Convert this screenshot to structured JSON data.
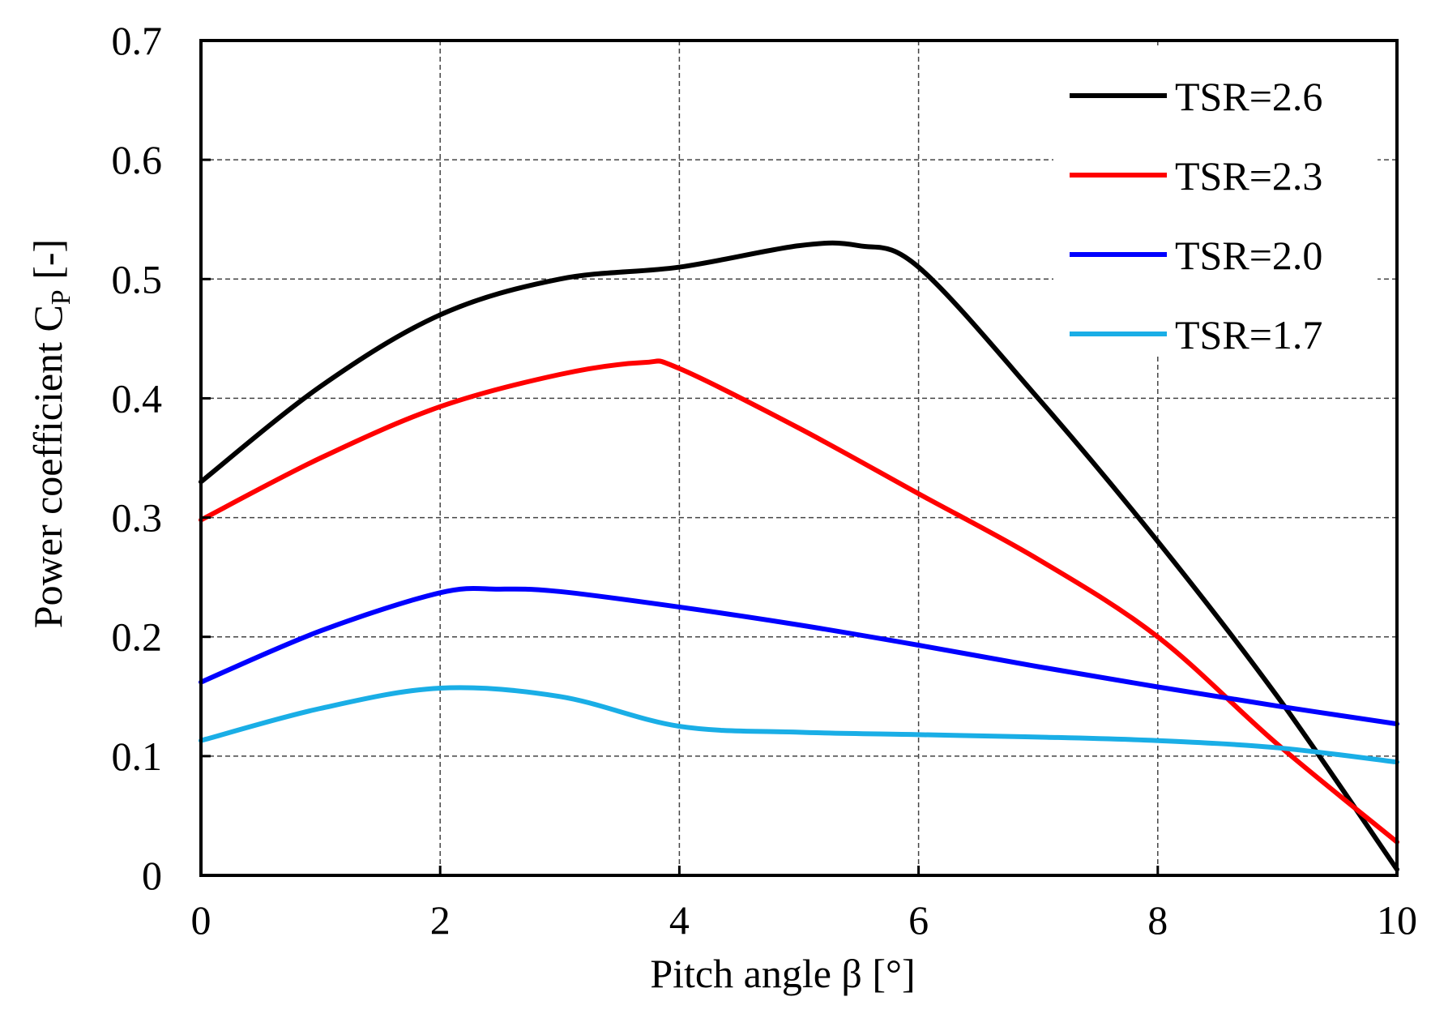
{
  "chart_data": {
    "type": "line",
    "title": "",
    "xlabel": "Pitch angle β [°]",
    "ylabel": "Power coefficient C",
    "ylabel_sub": "P",
    "ylabel_suffix": " [-]",
    "xlim": [
      0,
      10
    ],
    "ylim": [
      0,
      0.7
    ],
    "xticks": [
      0,
      2,
      4,
      6,
      8,
      10
    ],
    "xtick_labels": [
      "0",
      "2",
      "4",
      "6",
      "8",
      "10"
    ],
    "yticks": [
      0,
      0.1,
      0.2,
      0.3,
      0.4,
      0.5,
      0.6,
      0.7
    ],
    "ytick_labels": [
      "0",
      "0.1",
      "0.2",
      "0.3",
      "0.4",
      "0.5",
      "0.6",
      "0.7"
    ],
    "grid": true,
    "legend_position": "top-right",
    "series": [
      {
        "name": "TSR=2.6",
        "color": "#000000",
        "x": [
          0,
          1,
          2,
          3,
          4,
          5,
          5.5,
          6,
          7,
          8,
          9,
          10
        ],
        "y": [
          0.33,
          0.41,
          0.47,
          0.5,
          0.51,
          0.528,
          0.528,
          0.51,
          0.4,
          0.28,
          0.15,
          0.005
        ]
      },
      {
        "name": "TSR=2.3",
        "color": "#ff0000",
        "x": [
          0,
          1,
          2,
          3,
          3.7,
          4,
          5,
          6,
          7,
          8,
          9,
          10
        ],
        "y": [
          0.298,
          0.35,
          0.393,
          0.42,
          0.43,
          0.425,
          0.375,
          0.32,
          0.265,
          0.2,
          0.11,
          0.028
        ]
      },
      {
        "name": "TSR=2.0",
        "color": "#0000ff",
        "x": [
          0,
          1,
          2,
          2.5,
          3,
          4,
          5,
          6,
          7,
          8,
          9,
          10
        ],
        "y": [
          0.162,
          0.205,
          0.237,
          0.24,
          0.238,
          0.225,
          0.21,
          0.193,
          0.175,
          0.158,
          0.142,
          0.127
        ]
      },
      {
        "name": "TSR=1.7",
        "color": "#1aaee6",
        "x": [
          0,
          1,
          2,
          3,
          4,
          5,
          6,
          7,
          8,
          9,
          10
        ],
        "y": [
          0.113,
          0.14,
          0.157,
          0.15,
          0.125,
          0.12,
          0.118,
          0.116,
          0.113,
          0.107,
          0.095
        ]
      }
    ]
  }
}
